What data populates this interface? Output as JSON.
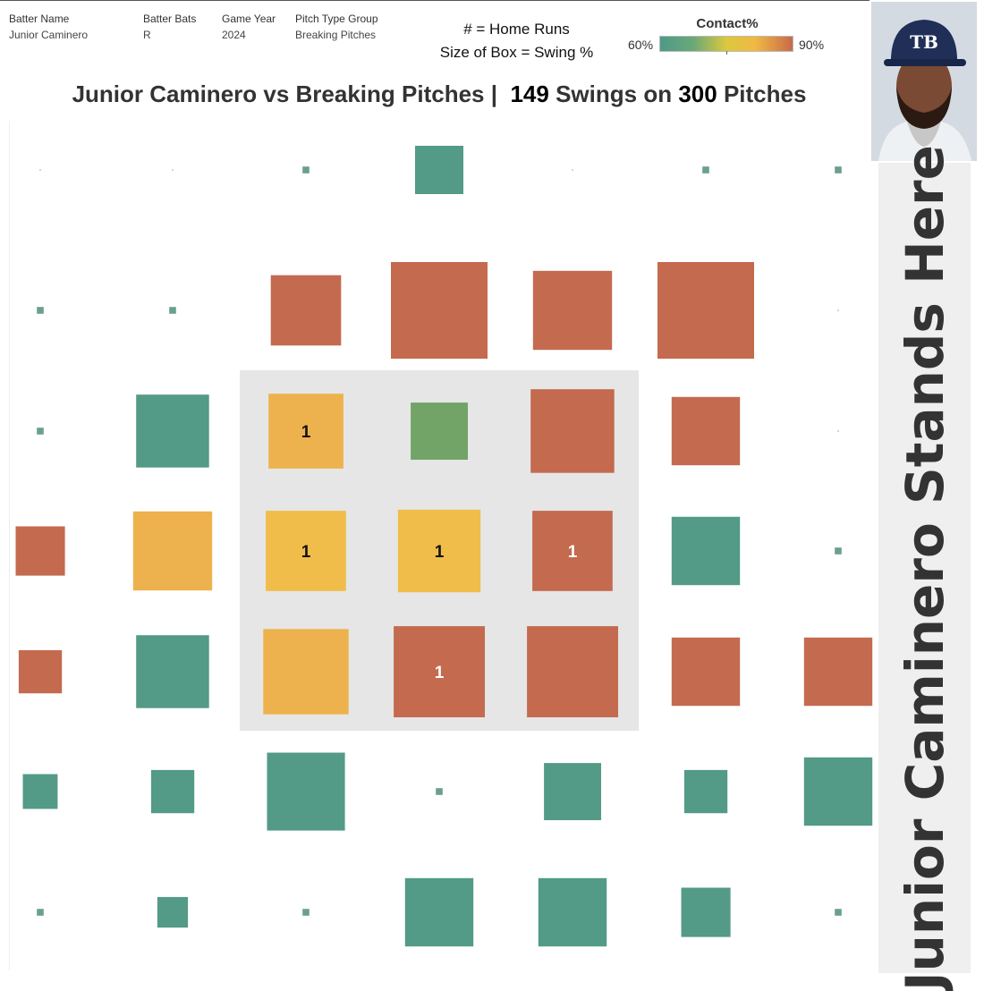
{
  "filters": [
    {
      "label": "Batter Name",
      "value": "Junior Caminero"
    },
    {
      "label": "Batter Bats",
      "value": "R"
    },
    {
      "label": "Game Year",
      "value": "2024"
    },
    {
      "label": "Pitch Type Group",
      "value": "Breaking Pitches"
    }
  ],
  "legend": {
    "hr_note": "# = Home Runs",
    "size_note": "Size of Box = Swing %",
    "color_title": "Contact%",
    "color_min": "60%",
    "color_max": "90%"
  },
  "title": {
    "prefix": "Junior Caminero vs Breaking Pitches |",
    "swings": "149",
    "swings_text": "Swings on",
    "pitches": "300",
    "pitches_text": "Pitches"
  },
  "banner": "Junior Caminero Stands Here",
  "colors": {
    "teal": "#539a87",
    "green": "#72a367",
    "yellow": "#f0bd4b",
    "amber": "#edb24d",
    "red": "#c46a4f",
    "strike_zone": "#e6e6e6",
    "text_dark": "#111111",
    "text_light": "#ffffff"
  },
  "chart_data": {
    "type": "heatmap",
    "description_keys": [
      "row",
      "col",
      "swing_pct",
      "contact_pct",
      "home_runs"
    ],
    "rows": 7,
    "cols": 7,
    "strike_zone": {
      "rows": [
        2,
        4
      ],
      "cols": [
        2,
        4
      ]
    },
    "cells": [
      {
        "row": 0,
        "col": 0,
        "swing_pct": 0,
        "contact_pct": null,
        "hr": 0,
        "color": "teal"
      },
      {
        "row": 0,
        "col": 1,
        "swing_pct": 0,
        "contact_pct": null,
        "hr": 0,
        "color": "teal"
      },
      {
        "row": 0,
        "col": 2,
        "swing_pct": 0.5,
        "contact_pct": null,
        "hr": 0,
        "color": "teal"
      },
      {
        "row": 0,
        "col": 3,
        "swing_pct": 25,
        "contact_pct": 60,
        "hr": 0,
        "color": "teal"
      },
      {
        "row": 0,
        "col": 4,
        "swing_pct": 0,
        "contact_pct": null,
        "hr": 0,
        "color": "teal"
      },
      {
        "row": 0,
        "col": 5,
        "swing_pct": 0.5,
        "contact_pct": null,
        "hr": 0,
        "color": "teal"
      },
      {
        "row": 0,
        "col": 6,
        "swing_pct": 0.5,
        "contact_pct": null,
        "hr": 0,
        "color": "teal"
      },
      {
        "row": 1,
        "col": 0,
        "swing_pct": 0.5,
        "contact_pct": null,
        "hr": 0,
        "color": "teal"
      },
      {
        "row": 1,
        "col": 1,
        "swing_pct": 0.5,
        "contact_pct": null,
        "hr": 0,
        "color": "teal"
      },
      {
        "row": 1,
        "col": 2,
        "swing_pct": 53,
        "contact_pct": 90,
        "hr": 0,
        "color": "red"
      },
      {
        "row": 1,
        "col": 3,
        "swing_pct": 100,
        "contact_pct": 90,
        "hr": 0,
        "color": "red"
      },
      {
        "row": 1,
        "col": 4,
        "swing_pct": 67,
        "contact_pct": 90,
        "hr": 0,
        "color": "red"
      },
      {
        "row": 1,
        "col": 5,
        "swing_pct": 100,
        "contact_pct": 90,
        "hr": 0,
        "color": "red"
      },
      {
        "row": 1,
        "col": 6,
        "swing_pct": 0,
        "contact_pct": null,
        "hr": 0,
        "color": "teal"
      },
      {
        "row": 2,
        "col": 0,
        "swing_pct": 0.5,
        "contact_pct": null,
        "hr": 0,
        "color": "teal"
      },
      {
        "row": 2,
        "col": 1,
        "swing_pct": 57,
        "contact_pct": 60,
        "hr": 0,
        "color": "teal"
      },
      {
        "row": 2,
        "col": 2,
        "swing_pct": 60,
        "contact_pct": 80,
        "hr": 1,
        "color": "amber"
      },
      {
        "row": 2,
        "col": 3,
        "swing_pct": 35,
        "contact_pct": 67,
        "hr": 0,
        "color": "green"
      },
      {
        "row": 2,
        "col": 4,
        "swing_pct": 75,
        "contact_pct": 90,
        "hr": 0,
        "color": "red"
      },
      {
        "row": 2,
        "col": 5,
        "swing_pct": 50,
        "contact_pct": 90,
        "hr": 0,
        "color": "red"
      },
      {
        "row": 2,
        "col": 6,
        "swing_pct": 0,
        "contact_pct": null,
        "hr": 0,
        "color": "teal"
      },
      {
        "row": 3,
        "col": 0,
        "swing_pct": 26,
        "contact_pct": 90,
        "hr": 0,
        "color": "red"
      },
      {
        "row": 3,
        "col": 1,
        "swing_pct": 67,
        "contact_pct": 80,
        "hr": 0,
        "color": "amber"
      },
      {
        "row": 3,
        "col": 2,
        "swing_pct": 69,
        "contact_pct": 78,
        "hr": 1,
        "color": "yellow"
      },
      {
        "row": 3,
        "col": 3,
        "swing_pct": 73,
        "contact_pct": 78,
        "hr": 1,
        "color": "yellow"
      },
      {
        "row": 3,
        "col": 4,
        "swing_pct": 69,
        "contact_pct": 90,
        "hr": 1,
        "color": "red"
      },
      {
        "row": 3,
        "col": 5,
        "swing_pct": 50,
        "contact_pct": 60,
        "hr": 0,
        "color": "teal"
      },
      {
        "row": 3,
        "col": 6,
        "swing_pct": 0.5,
        "contact_pct": null,
        "hr": 0,
        "color": "teal"
      },
      {
        "row": 4,
        "col": 0,
        "swing_pct": 20,
        "contact_pct": 90,
        "hr": 0,
        "color": "red"
      },
      {
        "row": 4,
        "col": 1,
        "swing_pct": 57,
        "contact_pct": 60,
        "hr": 0,
        "color": "teal"
      },
      {
        "row": 4,
        "col": 2,
        "swing_pct": 78,
        "contact_pct": 80,
        "hr": 0,
        "color": "amber"
      },
      {
        "row": 4,
        "col": 3,
        "swing_pct": 89,
        "contact_pct": 90,
        "hr": 1,
        "color": "red"
      },
      {
        "row": 4,
        "col": 4,
        "swing_pct": 89,
        "contact_pct": 90,
        "hr": 0,
        "color": "red"
      },
      {
        "row": 4,
        "col": 5,
        "swing_pct": 50,
        "contact_pct": 90,
        "hr": 0,
        "color": "red"
      },
      {
        "row": 4,
        "col": 6,
        "swing_pct": 50,
        "contact_pct": 90,
        "hr": 0,
        "color": "red"
      },
      {
        "row": 5,
        "col": 0,
        "swing_pct": 13,
        "contact_pct": 60,
        "hr": 0,
        "color": "teal"
      },
      {
        "row": 5,
        "col": 1,
        "swing_pct": 20,
        "contact_pct": 60,
        "hr": 0,
        "color": "teal"
      },
      {
        "row": 5,
        "col": 2,
        "swing_pct": 65,
        "contact_pct": 60,
        "hr": 0,
        "color": "teal"
      },
      {
        "row": 5,
        "col": 3,
        "swing_pct": 0.5,
        "contact_pct": null,
        "hr": 0,
        "color": "teal"
      },
      {
        "row": 5,
        "col": 4,
        "swing_pct": 35,
        "contact_pct": 60,
        "hr": 0,
        "color": "teal"
      },
      {
        "row": 5,
        "col": 5,
        "swing_pct": 20,
        "contact_pct": 60,
        "hr": 0,
        "color": "teal"
      },
      {
        "row": 5,
        "col": 6,
        "swing_pct": 50,
        "contact_pct": 60,
        "hr": 0,
        "color": "teal"
      },
      {
        "row": 6,
        "col": 0,
        "swing_pct": 0.5,
        "contact_pct": null,
        "hr": 0,
        "color": "teal"
      },
      {
        "row": 6,
        "col": 1,
        "swing_pct": 10,
        "contact_pct": 60,
        "hr": 0,
        "color": "teal"
      },
      {
        "row": 6,
        "col": 2,
        "swing_pct": 0.5,
        "contact_pct": null,
        "hr": 0,
        "color": "teal"
      },
      {
        "row": 6,
        "col": 3,
        "swing_pct": 50,
        "contact_pct": 60,
        "hr": 0,
        "color": "teal"
      },
      {
        "row": 6,
        "col": 4,
        "swing_pct": 50,
        "contact_pct": 60,
        "hr": 0,
        "color": "teal"
      },
      {
        "row": 6,
        "col": 5,
        "swing_pct": 26,
        "contact_pct": 60,
        "hr": 0,
        "color": "teal"
      },
      {
        "row": 6,
        "col": 6,
        "swing_pct": 0.5,
        "contact_pct": null,
        "hr": 0,
        "color": "teal"
      }
    ]
  }
}
